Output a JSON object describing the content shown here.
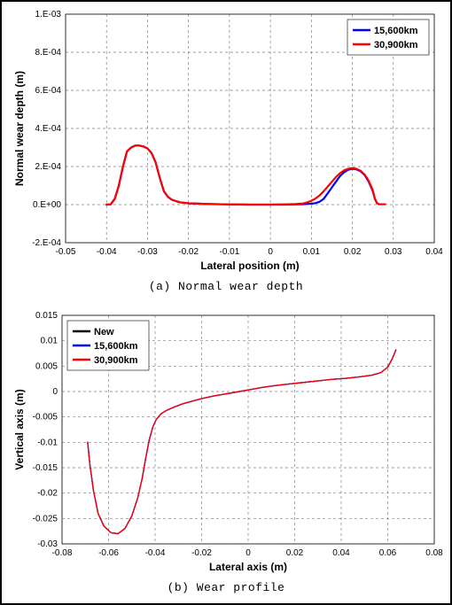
{
  "chart_a": {
    "type": "line",
    "title_caption": "(a) Normal wear depth",
    "xlabel": "Lateral position (m)",
    "ylabel": "Normal wear depth (m)",
    "xlim": [
      -0.05,
      0.04
    ],
    "ylim": [
      -0.0002,
      0.001
    ],
    "xticks": [
      -0.05,
      -0.04,
      -0.03,
      -0.02,
      -0.01,
      0,
      0.01,
      0.02,
      0.03,
      0.04
    ],
    "xtick_labels": [
      "-0.05",
      "-0.04",
      "-0.03",
      "-0.02",
      "-0.01",
      "0",
      "0.01",
      "0.02",
      "0.03",
      "0.04"
    ],
    "yticks": [
      -0.0002,
      0,
      0.0002,
      0.0004,
      0.0006,
      0.0008,
      0.001
    ],
    "ytick_labels": [
      "-2.E-04",
      "0.E+00",
      "2.E-04",
      "4.E-04",
      "6.E-04",
      "8.E-04",
      "1.E-03"
    ],
    "background_color": "#ffffff",
    "grid_color": "#808080",
    "legend": {
      "position": "top-right",
      "border_color": "#000000",
      "items": [
        {
          "label": "15,600km",
          "color": "#0000ff"
        },
        {
          "label": "30,900km",
          "color": "#ff0000"
        }
      ]
    },
    "series": [
      {
        "name": "15,600km",
        "color": "#0000ff",
        "line_width": 2.2,
        "points": [
          [
            -0.04,
            0.0
          ],
          [
            -0.039,
            1e-06
          ],
          [
            -0.038,
            3e-05
          ],
          [
            -0.037,
            0.0001
          ],
          [
            -0.036,
            0.0002
          ],
          [
            -0.035,
            0.00028
          ],
          [
            -0.034,
            0.0003
          ],
          [
            -0.033,
            0.00031
          ],
          [
            -0.032,
            0.00031
          ],
          [
            -0.031,
            0.000305
          ],
          [
            -0.03,
            0.000295
          ],
          [
            -0.029,
            0.00027
          ],
          [
            -0.028,
            0.00022
          ],
          [
            -0.027,
            0.00014
          ],
          [
            -0.026,
            7e-05
          ],
          [
            -0.025,
            4e-05
          ],
          [
            -0.024,
            2.5e-05
          ],
          [
            -0.023,
            1.8e-05
          ],
          [
            -0.022,
            1.2e-05
          ],
          [
            -0.02,
            7e-06
          ],
          [
            -0.015,
            3e-06
          ],
          [
            -0.01,
            1e-06
          ],
          [
            -0.005,
            0.0
          ],
          [
            0.0,
            0.0
          ],
          [
            0.003,
            0.0
          ],
          [
            0.006,
            1e-06
          ],
          [
            0.008,
            2e-06
          ],
          [
            0.01,
            5e-06
          ],
          [
            0.011,
            8e-06
          ],
          [
            0.012,
            1.5e-05
          ],
          [
            0.013,
            3e-05
          ],
          [
            0.014,
            6e-05
          ],
          [
            0.015,
            9e-05
          ],
          [
            0.016,
            0.00012
          ],
          [
            0.017,
            0.00015
          ],
          [
            0.018,
            0.00017
          ],
          [
            0.019,
            0.000183
          ],
          [
            0.02,
            0.000188
          ],
          [
            0.021,
            0.000185
          ],
          [
            0.022,
            0.000175
          ],
          [
            0.023,
            0.000155
          ],
          [
            0.024,
            0.00012
          ],
          [
            0.025,
            7e-05
          ],
          [
            0.0255,
            3e-05
          ],
          [
            0.026,
            8e-06
          ],
          [
            0.0265,
            2e-06
          ],
          [
            0.027,
            2e-06
          ],
          [
            0.028,
            2e-06
          ]
        ]
      },
      {
        "name": "30,900km",
        "color": "#ff0000",
        "line_width": 2.2,
        "points": [
          [
            -0.04,
            0.0
          ],
          [
            -0.039,
            1e-06
          ],
          [
            -0.038,
            3e-05
          ],
          [
            -0.037,
            0.0001
          ],
          [
            -0.036,
            0.0002
          ],
          [
            -0.035,
            0.00028
          ],
          [
            -0.034,
            0.0003
          ],
          [
            -0.033,
            0.00031
          ],
          [
            -0.032,
            0.00031
          ],
          [
            -0.031,
            0.000305
          ],
          [
            -0.03,
            0.000295
          ],
          [
            -0.029,
            0.00027
          ],
          [
            -0.028,
            0.00022
          ],
          [
            -0.027,
            0.00014
          ],
          [
            -0.026,
            7e-05
          ],
          [
            -0.025,
            4e-05
          ],
          [
            -0.024,
            2.5e-05
          ],
          [
            -0.023,
            1.8e-05
          ],
          [
            -0.022,
            1.2e-05
          ],
          [
            -0.02,
            7e-06
          ],
          [
            -0.015,
            3e-06
          ],
          [
            -0.01,
            1e-06
          ],
          [
            -0.005,
            0.0
          ],
          [
            0.0,
            0.0
          ],
          [
            0.003,
            1e-06
          ],
          [
            0.006,
            3e-06
          ],
          [
            0.008,
            6e-06
          ],
          [
            0.009,
            1.2e-05
          ],
          [
            0.01,
            2e-05
          ],
          [
            0.011,
            3.2e-05
          ],
          [
            0.012,
            4.8e-05
          ],
          [
            0.013,
            7e-05
          ],
          [
            0.014,
            9.5e-05
          ],
          [
            0.015,
            0.00012
          ],
          [
            0.016,
            0.000145
          ],
          [
            0.017,
            0.000165
          ],
          [
            0.018,
            0.00018
          ],
          [
            0.019,
            0.000188
          ],
          [
            0.02,
            0.000192
          ],
          [
            0.021,
            0.000188
          ],
          [
            0.022,
            0.000178
          ],
          [
            0.023,
            0.000158
          ],
          [
            0.024,
            0.000125
          ],
          [
            0.025,
            7.5e-05
          ],
          [
            0.0255,
            3.2e-05
          ],
          [
            0.026,
            9e-06
          ],
          [
            0.0265,
            2e-06
          ],
          [
            0.027,
            2e-06
          ],
          [
            0.028,
            2e-06
          ]
        ]
      }
    ]
  },
  "chart_b": {
    "type": "line",
    "title_caption": "(b) Wear profile",
    "xlabel": "Lateral axis (m)",
    "ylabel": "Vertical axis (m)",
    "xlim": [
      -0.08,
      0.08
    ],
    "ylim": [
      -0.03,
      0.015
    ],
    "xticks": [
      -0.08,
      -0.06,
      -0.04,
      -0.02,
      0,
      0.02,
      0.04,
      0.06,
      0.08
    ],
    "xtick_labels": [
      "-0.08",
      "-0.06",
      "-0.04",
      "-0.02",
      "0",
      "0.02",
      "0.04",
      "0.06",
      "0.08"
    ],
    "yticks": [
      -0.03,
      -0.025,
      -0.02,
      -0.015,
      -0.01,
      -0.005,
      0,
      0.005,
      0.01,
      0.015
    ],
    "ytick_labels": [
      "-0.03",
      "-0.025",
      "-0.02",
      "-0.015",
      "-0.01",
      "-0.005",
      "0",
      "0.005",
      "0.01",
      "0.015"
    ],
    "background_color": "#ffffff",
    "grid_color": "#808080",
    "legend": {
      "position": "top-left",
      "border_color": "#000000",
      "items": [
        {
          "label": "New",
          "color": "#000000"
        },
        {
          "label": "15,600km",
          "color": "#0000ff"
        },
        {
          "label": "30,900km",
          "color": "#ff0000"
        }
      ]
    },
    "series": [
      {
        "name": "New",
        "color": "#000000",
        "line_width": 1.3,
        "points": [
          [
            -0.069,
            -0.01
          ],
          [
            -0.068,
            -0.0145
          ],
          [
            -0.0665,
            -0.0195
          ],
          [
            -0.0645,
            -0.024
          ],
          [
            -0.062,
            -0.0265
          ],
          [
            -0.059,
            -0.0278
          ],
          [
            -0.056,
            -0.028
          ],
          [
            -0.053,
            -0.027
          ],
          [
            -0.05,
            -0.0245
          ],
          [
            -0.0475,
            -0.021
          ],
          [
            -0.0455,
            -0.017
          ],
          [
            -0.044,
            -0.013
          ],
          [
            -0.0425,
            -0.0095
          ],
          [
            -0.041,
            -0.007
          ],
          [
            -0.0395,
            -0.0055
          ],
          [
            -0.0375,
            -0.0044
          ],
          [
            -0.035,
            -0.0037
          ],
          [
            -0.032,
            -0.0031
          ],
          [
            -0.028,
            -0.0024
          ],
          [
            -0.024,
            -0.0019
          ],
          [
            -0.02,
            -0.0014
          ],
          [
            -0.015,
            -0.0009
          ],
          [
            -0.01,
            -0.0005
          ],
          [
            -0.005,
            -0.0001
          ],
          [
            0.0,
            0.0003
          ],
          [
            0.006,
            0.0008
          ],
          [
            0.012,
            0.0012
          ],
          [
            0.018,
            0.0015
          ],
          [
            0.024,
            0.0018
          ],
          [
            0.03,
            0.0021
          ],
          [
            0.036,
            0.0024
          ],
          [
            0.042,
            0.0026
          ],
          [
            0.048,
            0.0029
          ],
          [
            0.053,
            0.0032
          ],
          [
            0.057,
            0.0037
          ],
          [
            0.06,
            0.0048
          ],
          [
            0.062,
            0.0065
          ],
          [
            0.0635,
            0.0082
          ]
        ]
      },
      {
        "name": "15,600km",
        "color": "#0000ff",
        "line_width": 1.3,
        "points": [
          [
            -0.069,
            -0.01
          ],
          [
            -0.068,
            -0.0145
          ],
          [
            -0.0665,
            -0.0195
          ],
          [
            -0.0645,
            -0.024
          ],
          [
            -0.062,
            -0.0265
          ],
          [
            -0.059,
            -0.0278
          ],
          [
            -0.056,
            -0.028
          ],
          [
            -0.053,
            -0.027
          ],
          [
            -0.05,
            -0.0245
          ],
          [
            -0.0475,
            -0.021
          ],
          [
            -0.0455,
            -0.017
          ],
          [
            -0.044,
            -0.013
          ],
          [
            -0.0425,
            -0.0095
          ],
          [
            -0.041,
            -0.007
          ],
          [
            -0.0395,
            -0.0055
          ],
          [
            -0.0375,
            -0.0044
          ],
          [
            -0.035,
            -0.0037
          ],
          [
            -0.032,
            -0.0031
          ],
          [
            -0.028,
            -0.0024
          ],
          [
            -0.024,
            -0.0019
          ],
          [
            -0.02,
            -0.0014
          ],
          [
            -0.015,
            -0.0009
          ],
          [
            -0.01,
            -0.0005
          ],
          [
            -0.005,
            -0.0001
          ],
          [
            0.0,
            0.0003
          ],
          [
            0.006,
            0.0008
          ],
          [
            0.012,
            0.0012
          ],
          [
            0.018,
            0.0015
          ],
          [
            0.024,
            0.0018
          ],
          [
            0.03,
            0.0021
          ],
          [
            0.036,
            0.0024
          ],
          [
            0.042,
            0.0026
          ],
          [
            0.048,
            0.0029
          ],
          [
            0.053,
            0.0032
          ],
          [
            0.057,
            0.0037
          ],
          [
            0.06,
            0.0048
          ],
          [
            0.062,
            0.0065
          ],
          [
            0.0635,
            0.0082
          ]
        ]
      },
      {
        "name": "30,900km",
        "color": "#ff0000",
        "line_width": 1.3,
        "points": [
          [
            -0.069,
            -0.01
          ],
          [
            -0.068,
            -0.0145
          ],
          [
            -0.0665,
            -0.0195
          ],
          [
            -0.0645,
            -0.024
          ],
          [
            -0.062,
            -0.0265
          ],
          [
            -0.059,
            -0.0278
          ],
          [
            -0.056,
            -0.028
          ],
          [
            -0.053,
            -0.027
          ],
          [
            -0.05,
            -0.0245
          ],
          [
            -0.0475,
            -0.021
          ],
          [
            -0.0455,
            -0.017
          ],
          [
            -0.044,
            -0.013
          ],
          [
            -0.0425,
            -0.0095
          ],
          [
            -0.041,
            -0.007
          ],
          [
            -0.0395,
            -0.0055
          ],
          [
            -0.0375,
            -0.0044
          ],
          [
            -0.035,
            -0.0037
          ],
          [
            -0.032,
            -0.0031
          ],
          [
            -0.028,
            -0.0024
          ],
          [
            -0.024,
            -0.0019
          ],
          [
            -0.02,
            -0.0014
          ],
          [
            -0.015,
            -0.0009
          ],
          [
            -0.01,
            -0.0005
          ],
          [
            -0.005,
            -0.0001
          ],
          [
            0.0,
            0.0003
          ],
          [
            0.006,
            0.0008
          ],
          [
            0.012,
            0.0012
          ],
          [
            0.018,
            0.0015
          ],
          [
            0.024,
            0.0018
          ],
          [
            0.03,
            0.0021
          ],
          [
            0.036,
            0.0024
          ],
          [
            0.042,
            0.0026
          ],
          [
            0.048,
            0.0029
          ],
          [
            0.053,
            0.0032
          ],
          [
            0.057,
            0.0037
          ],
          [
            0.06,
            0.0048
          ],
          [
            0.062,
            0.0065
          ],
          [
            0.0635,
            0.0082
          ]
        ]
      }
    ]
  }
}
